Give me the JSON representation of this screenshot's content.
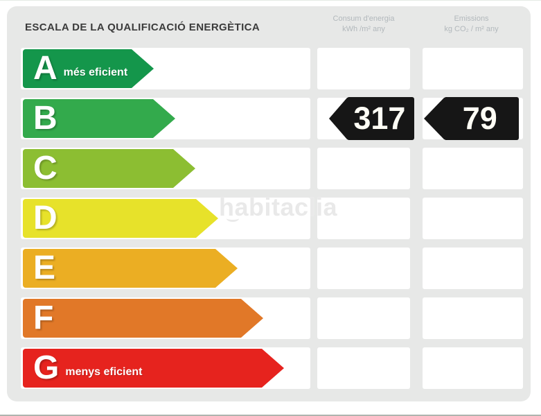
{
  "header": {
    "title": "ESCALA DE LA QUALIFICACIÓ ENERGÈTICA",
    "columns": [
      {
        "line1": "Consum d'energia",
        "line2": "kWh /m² any"
      },
      {
        "line1": "Emissions",
        "line2": "kg CO₂ / m² any"
      }
    ]
  },
  "ratings": [
    {
      "grade": "A",
      "note": "més eficient",
      "color": "#14964B",
      "arrow_width": 189
    },
    {
      "grade": "B",
      "note": "",
      "color": "#33AA4C",
      "arrow_width": 220
    },
    {
      "grade": "C",
      "note": "",
      "color": "#8CBE32",
      "arrow_width": 249
    },
    {
      "grade": "D",
      "note": "",
      "color": "#E7E22A",
      "arrow_width": 282
    },
    {
      "grade": "E",
      "note": "",
      "color": "#EBAE23",
      "arrow_width": 310
    },
    {
      "grade": "F",
      "note": "",
      "color": "#E17828",
      "arrow_width": 347
    },
    {
      "grade": "G",
      "note": "menys eficient",
      "color": "#E6231E",
      "arrow_width": 377
    }
  ],
  "values": {
    "rated_grade": "B",
    "consum": "317",
    "emissions": "79",
    "tag_color": "#161616"
  },
  "watermark": "habitaclia",
  "chart_data": {
    "type": "bar",
    "title": "ESCALA DE LA QUALIFICACIÓ ENERGÈTICA",
    "categories": [
      "A",
      "B",
      "C",
      "D",
      "E",
      "F",
      "G"
    ],
    "series": [
      {
        "name": "scale-arrow-relative-length",
        "values": [
          189,
          220,
          249,
          282,
          310,
          347,
          377
        ]
      }
    ],
    "category_colors": [
      "#14964B",
      "#33AA4C",
      "#8CBE32",
      "#E7E22A",
      "#EBAE23",
      "#E17828",
      "#E6231E"
    ],
    "category_notes": {
      "A": "més eficient",
      "G": "menys eficient"
    },
    "rating": "B",
    "consum_kwh_m2_any": 317,
    "emissions_kg_co2_m2_any": 79,
    "column_headers": [
      "Consum d'energia kWh /m² any",
      "Emissions kg CO₂ / m² any"
    ],
    "legend": false,
    "grid": false
  }
}
